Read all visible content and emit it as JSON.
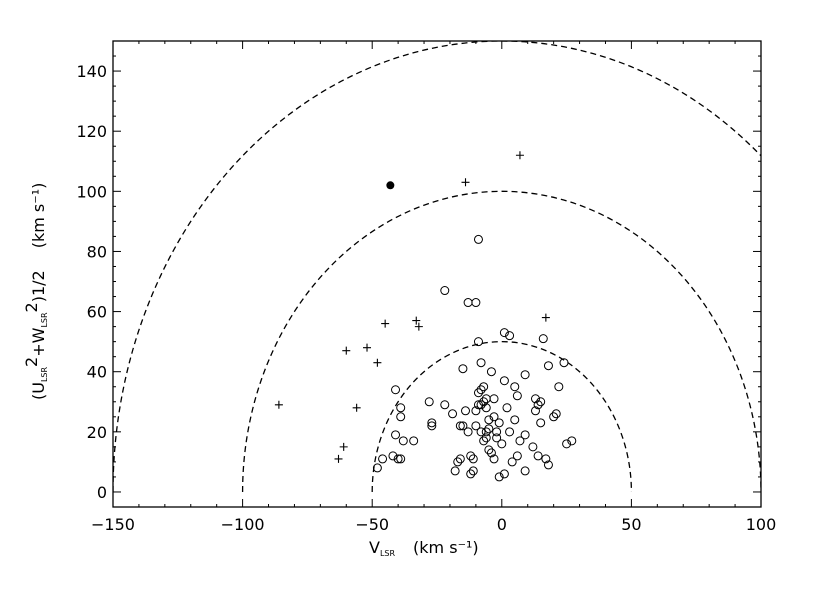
{
  "chart_data": {
    "type": "scatter",
    "title": "",
    "xlabel": {
      "main": "V",
      "sub": "LSR",
      "unit": "(km s⁻¹)"
    },
    "ylabel": {
      "p1": "(U",
      "sub1": "LSR",
      "p2": "2",
      "p3": "+W",
      "sub2": "LSR",
      "p4": "2",
      "p5": ")1/2",
      "unit": "(km s⁻¹)"
    },
    "xlim": [
      -150,
      100
    ],
    "ylim": [
      -5,
      150
    ],
    "xticks": [
      -150,
      -100,
      -50,
      0,
      50,
      100
    ],
    "xtick_labels": [
      "−150",
      "−100",
      "−50",
      "0",
      "50",
      "100"
    ],
    "yticks": [
      0,
      20,
      40,
      60,
      80,
      100,
      120,
      140
    ],
    "ytick_labels": [
      "0",
      "20",
      "40",
      "60",
      "80",
      "100",
      "120",
      "140"
    ],
    "grid": false,
    "reference_circles": [
      {
        "center": [
          0,
          0
        ],
        "radius": 50,
        "style": "dashed"
      },
      {
        "center": [
          0,
          0
        ],
        "radius": 100,
        "style": "dashed"
      },
      {
        "center": [
          0,
          0
        ],
        "radius": 150,
        "style": "dashed"
      }
    ],
    "series": [
      {
        "marker": "open-circle",
        "points": [
          [
            -48,
            8
          ],
          [
            -46,
            11
          ],
          [
            -42,
            12
          ],
          [
            -40,
            11
          ],
          [
            -39,
            11
          ],
          [
            -34,
            17
          ],
          [
            -38,
            17
          ],
          [
            -41,
            19
          ],
          [
            -39,
            25
          ],
          [
            -39,
            28
          ],
          [
            -41,
            34
          ],
          [
            -28,
            30
          ],
          [
            -27,
            23
          ],
          [
            -27,
            22
          ],
          [
            -22,
            29
          ],
          [
            -19,
            26
          ],
          [
            -16,
            22
          ],
          [
            -15,
            22
          ],
          [
            -17,
            10
          ],
          [
            -18,
            7
          ],
          [
            -16,
            11
          ],
          [
            -15,
            41
          ],
          [
            -12,
            6
          ],
          [
            -11,
            11
          ],
          [
            -12,
            12
          ],
          [
            -14,
            27
          ],
          [
            -13,
            20
          ],
          [
            -10,
            22
          ],
          [
            -10,
            27
          ],
          [
            -9,
            29
          ],
          [
            -9,
            33
          ],
          [
            -8,
            29
          ],
          [
            -8,
            34
          ],
          [
            -7,
            35
          ],
          [
            -7,
            30
          ],
          [
            -6,
            31
          ],
          [
            -6,
            28
          ],
          [
            -5,
            24
          ],
          [
            -6,
            20
          ],
          [
            -6,
            18
          ],
          [
            -8,
            20
          ],
          [
            -7,
            17
          ],
          [
            -5,
            14
          ],
          [
            -4,
            13
          ],
          [
            -3,
            11
          ],
          [
            -3,
            25
          ],
          [
            -4,
            40
          ],
          [
            -2,
            20
          ],
          [
            -8,
            43
          ],
          [
            -9,
            50
          ],
          [
            -5,
            21
          ],
          [
            -3,
            31
          ],
          [
            -1,
            23
          ],
          [
            -2,
            18
          ],
          [
            -1,
            5
          ],
          [
            1,
            6
          ],
          [
            0,
            16
          ],
          [
            1,
            37
          ],
          [
            3,
            20
          ],
          [
            4,
            10
          ],
          [
            6,
            12
          ],
          [
            5,
            24
          ],
          [
            5,
            35
          ],
          [
            6,
            32
          ],
          [
            7,
            17
          ],
          [
            9,
            39
          ],
          [
            9,
            19
          ],
          [
            9,
            7
          ],
          [
            12,
            15
          ],
          [
            13,
            27
          ],
          [
            13,
            31
          ],
          [
            14,
            29
          ],
          [
            14,
            12
          ],
          [
            15,
            30
          ],
          [
            15,
            23
          ],
          [
            16,
            51
          ],
          [
            18,
            42
          ],
          [
            17,
            11
          ],
          [
            18,
            9
          ],
          [
            20,
            25
          ],
          [
            21,
            26
          ],
          [
            22,
            35
          ],
          [
            24,
            43
          ],
          [
            25,
            16
          ],
          [
            27,
            17
          ],
          [
            -22,
            67
          ],
          [
            -13,
            63
          ],
          [
            -10,
            63
          ],
          [
            1,
            53
          ],
          [
            3,
            52
          ],
          [
            -9,
            84
          ],
          [
            -11,
            7
          ],
          [
            2,
            28
          ]
        ]
      },
      {
        "marker": "plus",
        "points": [
          [
            -86,
            29
          ],
          [
            -63,
            11
          ],
          [
            -61,
            15
          ],
          [
            -60,
            47
          ],
          [
            -56,
            28
          ],
          [
            -52,
            48
          ],
          [
            -48,
            43
          ],
          [
            -45,
            56
          ],
          [
            -33,
            57
          ],
          [
            -32,
            55
          ],
          [
            -14,
            103
          ],
          [
            7,
            112
          ],
          [
            17,
            58
          ]
        ]
      },
      {
        "marker": "filled-circle",
        "points": [
          [
            -43,
            102
          ]
        ]
      }
    ]
  }
}
